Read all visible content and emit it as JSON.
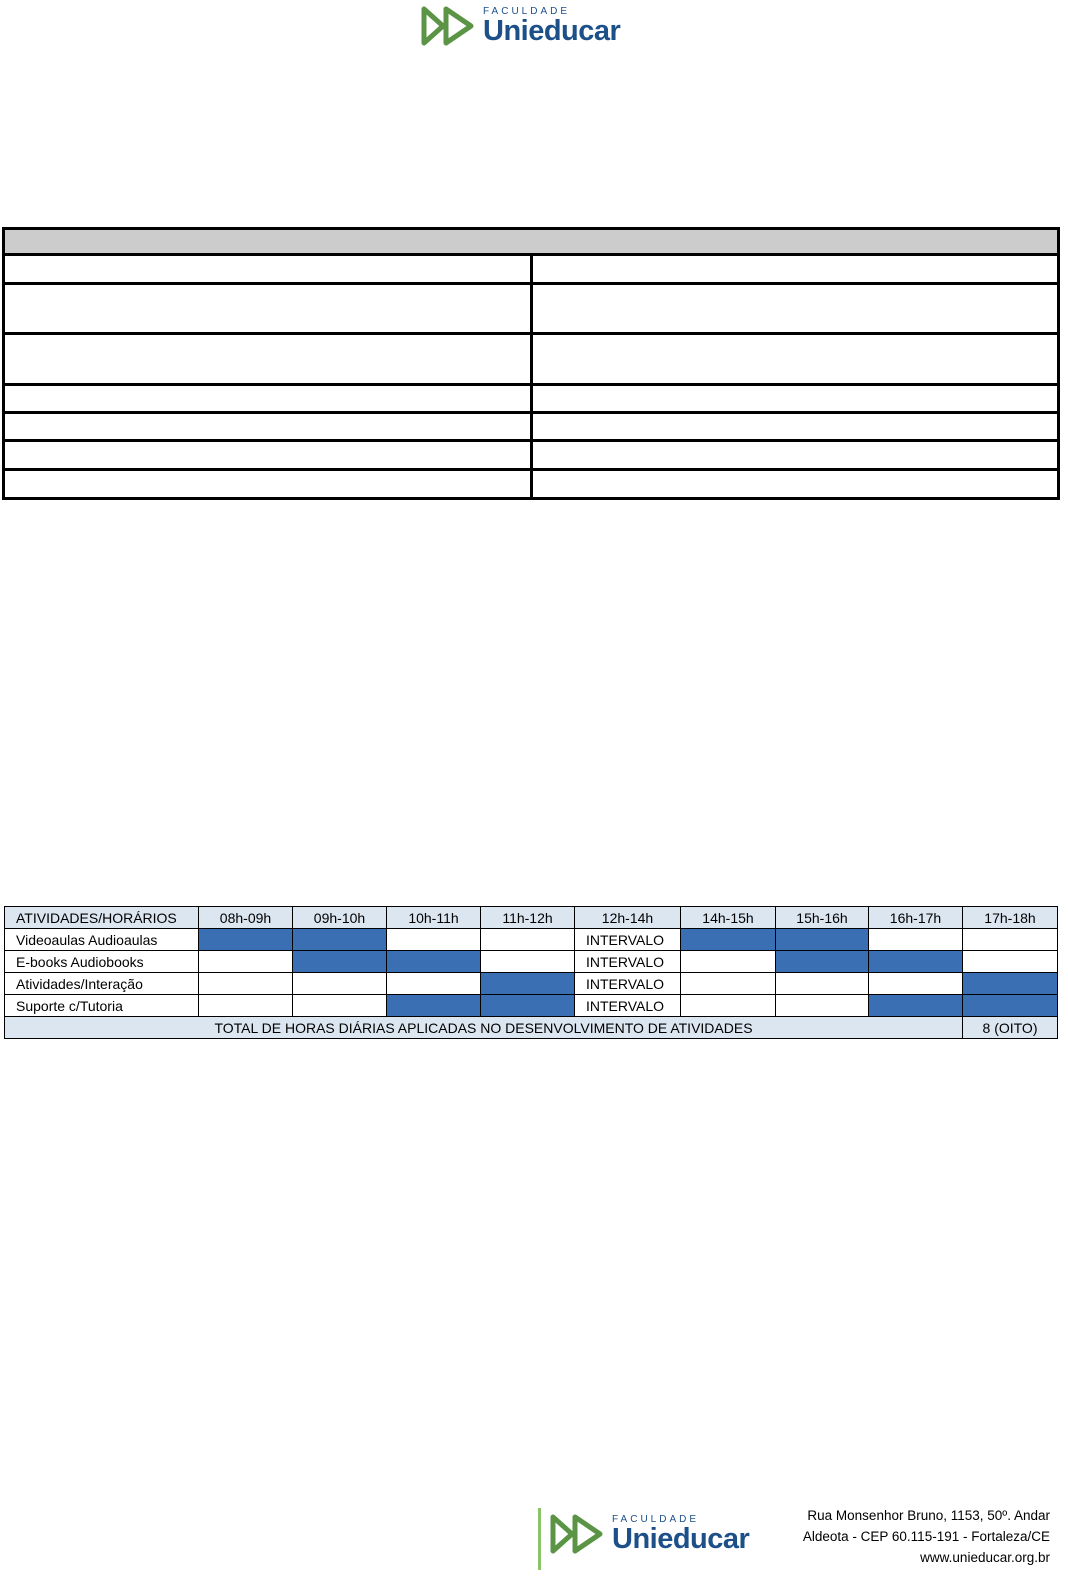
{
  "header": {
    "logo": {
      "faculdade": "FACULDADE",
      "name": "Unieducar"
    }
  },
  "schedule": {
    "columns": [
      "ATIVIDADES/HORÁRIOS",
      "08h-09h",
      "09h-10h",
      "10h-11h",
      "11h-12h",
      "12h-14h",
      "14h-15h",
      "15h-16h",
      "16h-17h",
      "17h-18h"
    ],
    "rows": [
      {
        "label": "Videoaulas Audioaulas",
        "interval": "INTERVALO",
        "filled": [
          true,
          true,
          false,
          false,
          true,
          true,
          false,
          false
        ]
      },
      {
        "label": "E-books Audiobooks",
        "interval": "INTERVALO",
        "filled": [
          false,
          true,
          true,
          false,
          false,
          true,
          true,
          false
        ]
      },
      {
        "label": "Atividades/Interação",
        "interval": "INTERVALO",
        "filled": [
          false,
          false,
          false,
          true,
          false,
          false,
          false,
          true
        ]
      },
      {
        "label": "Suporte c/Tutoria",
        "interval": "INTERVALO",
        "filled": [
          false,
          false,
          true,
          true,
          false,
          false,
          true,
          true
        ]
      }
    ],
    "total_label": "TOTAL DE HORAS DIÁRIAS APLICADAS NO DESENVOLVIMENTO DE ATIVIDADES",
    "total_value": "8 (OITO)",
    "fill_color": "#3b6fb4",
    "header_color": "#dce6f1"
  },
  "footer": {
    "logo": {
      "faculdade": "FACULDADE",
      "name": "Unieducar"
    },
    "address_line1": "Rua Monsenhor Bruno, 1153, 50º. Andar",
    "address_line2": "Aldeota - CEP 60.115-191 - Fortaleza/CE",
    "website": "www.unieducar.org.br"
  }
}
